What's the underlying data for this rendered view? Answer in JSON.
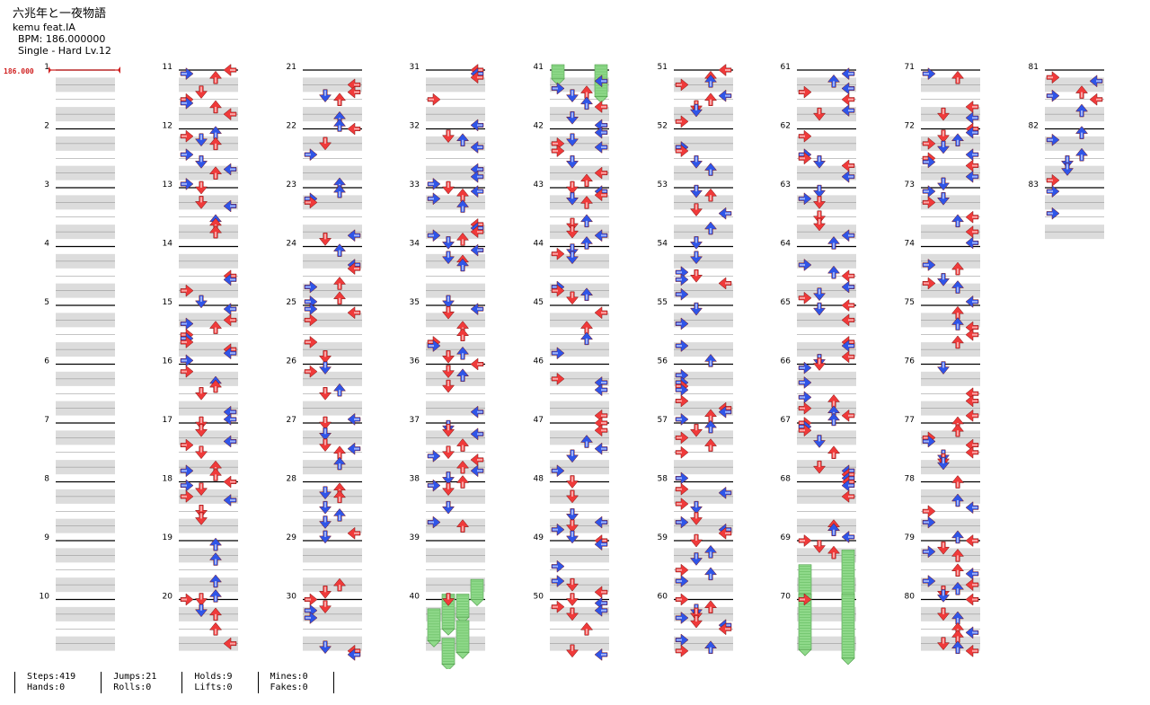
{
  "song": {
    "title": "六兆年と一夜物語",
    "artist": "kemu feat.IA",
    "bpm_text": "BPM: 186.000000",
    "chart_text": "Single - Hard  Lv.12"
  },
  "bpm_marker": "186.000",
  "colors": {
    "red": "#f03a3a",
    "blue": "#2f55e8",
    "hold": "#8fd98a",
    "lane": "#dcdcdc"
  },
  "chart": {
    "measures": 83,
    "measures_per_column": 10,
    "holds": [
      {
        "measure": 41,
        "col": 0,
        "start": 0,
        "end": 0.15
      },
      {
        "measure": 41,
        "col": 3,
        "start": 0,
        "end": 0.45
      },
      {
        "measure": 39,
        "col": 3,
        "start": 0.75,
        "end": 1.0
      },
      {
        "measure": 40,
        "col": 2,
        "start": 0.0,
        "end": 0.3
      },
      {
        "measure": 40,
        "col": 1,
        "start": 0.0,
        "end": 0.5
      },
      {
        "measure": 40,
        "col": 0,
        "start": 0.25,
        "end": 0.7
      },
      {
        "measure": 40,
        "col": 2,
        "start": 0.45,
        "end": 0.9
      },
      {
        "measure": 40,
        "col": 1,
        "start": 0.75,
        "end": 1.1
      },
      {
        "measure": 69,
        "col": 3,
        "start": 0.25,
        "end": 1.0
      },
      {
        "measure": 70,
        "col": 3,
        "start": 0.0,
        "end": 1.0
      },
      {
        "measure": 69,
        "col": 0,
        "start": 0.5,
        "end": 1.0
      },
      {
        "measure": 70,
        "col": 0,
        "start": 0.0,
        "end": 0.85
      }
    ]
  },
  "stats": [
    {
      "a": "Steps:419",
      "b": "Hands:0"
    },
    {
      "a": "Jumps:21",
      "b": "Rolls:0"
    },
    {
      "a": "Holds:9",
      "b": "Lifts:0"
    },
    {
      "a": "Mines:0",
      "b": "Fakes:0"
    }
  ]
}
